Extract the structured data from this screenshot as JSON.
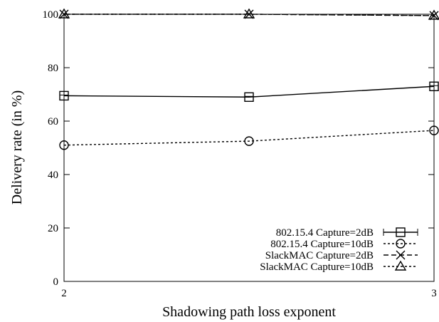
{
  "chart_data": {
    "type": "line",
    "xlabel": "Shadowing path loss exponent",
    "ylabel": "Delivery rate (in %)",
    "x": [
      2,
      2.5,
      3
    ],
    "xlim": [
      2,
      3
    ],
    "ylim": [
      0,
      100
    ],
    "xticks": [
      2,
      3
    ],
    "yticks": [
      0,
      20,
      40,
      60,
      80,
      100
    ],
    "grid": false,
    "legend_position": "bottom-right",
    "series": [
      {
        "name": "802.15.4 Capture=2dB",
        "values": [
          69.5,
          69.0,
          73.0
        ],
        "marker": "square",
        "dash": "solid",
        "errorbars": true
      },
      {
        "name": "802.15.4 Capture=10dB",
        "values": [
          51.0,
          52.5,
          56.5
        ],
        "marker": "circle",
        "dash": "dotted",
        "errorbars": false
      },
      {
        "name": "SlackMAC Capture=2dB",
        "values": [
          100,
          100,
          99.5
        ],
        "marker": "x",
        "dash": "dashed",
        "errorbars": false
      },
      {
        "name": "SlackMAC Capture=10dB",
        "values": [
          100,
          100,
          99.5
        ],
        "marker": "triangle",
        "dash": "dotted",
        "errorbars": false
      }
    ]
  }
}
